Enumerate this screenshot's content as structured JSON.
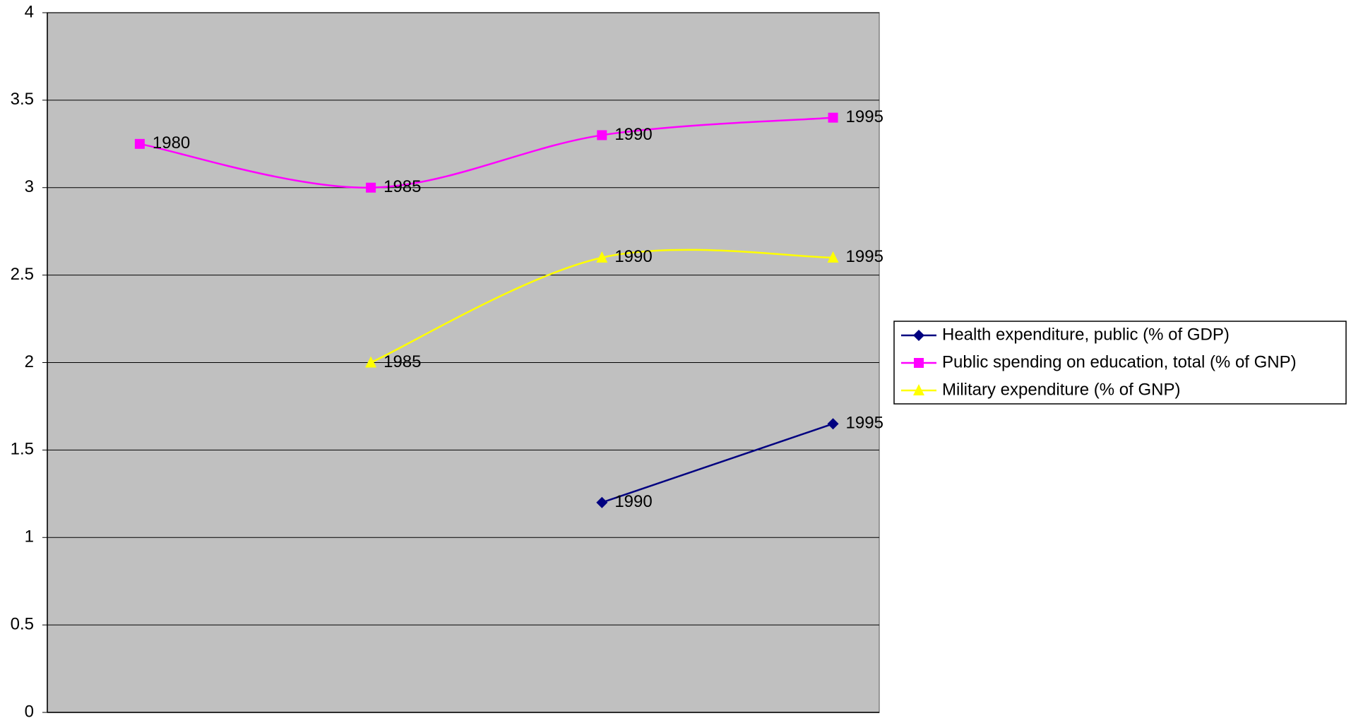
{
  "chart_data": {
    "type": "line",
    "categories": [
      "1980",
      "1985",
      "1990",
      "1995"
    ],
    "series": [
      {
        "name": "Health expenditure, public (% of GDP)",
        "color": "#000080",
        "marker": "diamond",
        "values": [
          null,
          null,
          1.2,
          1.65
        ]
      },
      {
        "name": "Public spending on education, total (% of GNP)",
        "color": "#ff00ff",
        "marker": "square",
        "values": [
          3.25,
          3.0,
          3.3,
          3.4
        ]
      },
      {
        "name": "Military expenditure (% of GNP)",
        "color": "#ffff00",
        "marker": "triangle",
        "values": [
          null,
          2.0,
          2.6,
          2.6
        ]
      }
    ],
    "ylim": [
      0,
      4
    ],
    "yticks": [
      0,
      0.5,
      1,
      1.5,
      2,
      2.5,
      3,
      3.5,
      4
    ],
    "grid": true,
    "smooth": true,
    "legend": "right",
    "plot_background": "#c0c0c0"
  }
}
